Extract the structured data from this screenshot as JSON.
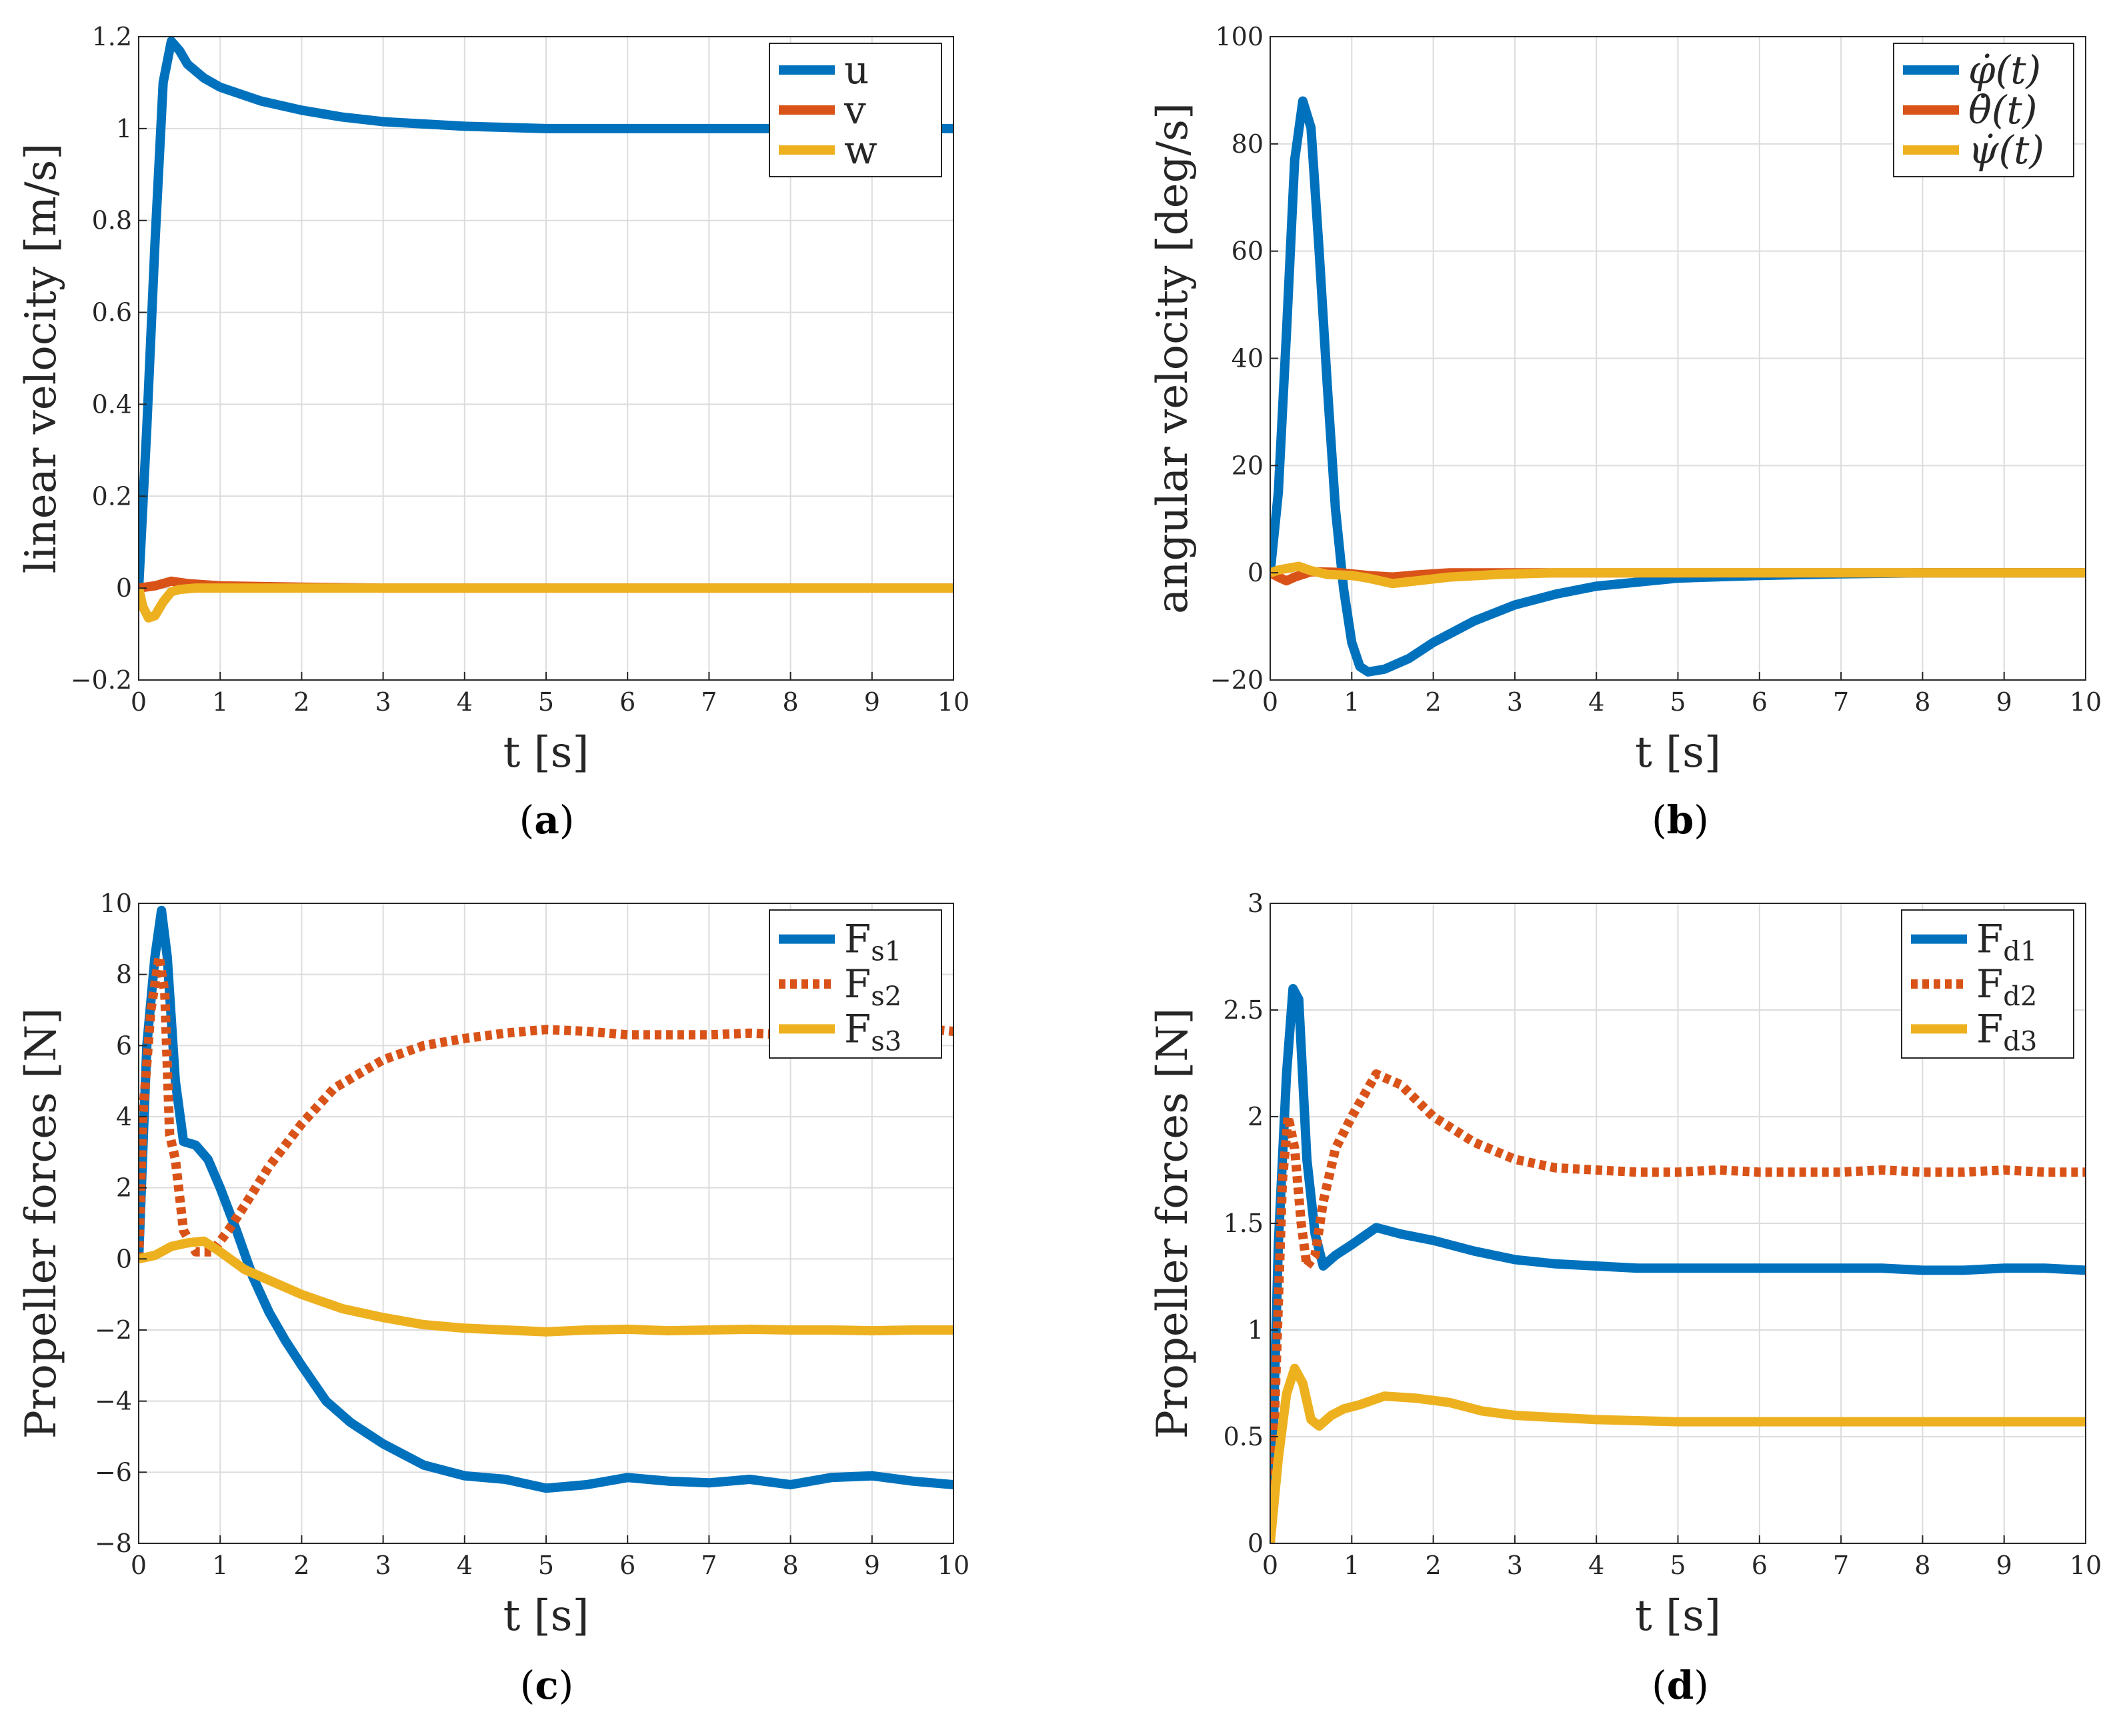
{
  "chart_data": [
    {
      "type": "line",
      "panel": "a",
      "caption": "(a)",
      "xlabel": "t [s]",
      "ylabel": "linear velocity [m/s]",
      "xlim": [
        0,
        10
      ],
      "ylim": [
        -0.2,
        1.2
      ],
      "xticks": [
        0,
        1,
        2,
        3,
        4,
        5,
        6,
        7,
        8,
        9,
        10
      ],
      "yticks": [
        -0.2,
        0,
        0.2,
        0.4,
        0.6,
        0.8,
        1,
        1.2
      ],
      "xtick_labels": [
        "0",
        "1",
        "2",
        "3",
        "4",
        "5",
        "6",
        "7",
        "8",
        "9",
        "10"
      ],
      "ytick_labels": [
        "−0.2",
        "0",
        "0.2",
        "0.4",
        "0.6",
        "0.8",
        "1",
        "1.2"
      ],
      "grid": true,
      "legend_position": "top-right",
      "series": [
        {
          "name": "u",
          "label": "u",
          "color": "#0072BD",
          "style": "solid",
          "x": [
            0,
            0.1,
            0.2,
            0.3,
            0.4,
            0.5,
            0.6,
            0.8,
            1.0,
            1.5,
            2.0,
            2.5,
            3.0,
            4.0,
            5.0,
            6.0,
            7.0,
            8.0,
            9.0,
            10.0
          ],
          "y": [
            0,
            0.35,
            0.75,
            1.1,
            1.19,
            1.17,
            1.14,
            1.11,
            1.09,
            1.06,
            1.04,
            1.025,
            1.015,
            1.005,
            1.0,
            1.0,
            1.0,
            1.0,
            1.0,
            1.0
          ]
        },
        {
          "name": "v",
          "label": "v",
          "color": "#D95319",
          "style": "solid",
          "x": [
            0,
            0.2,
            0.4,
            0.6,
            1.0,
            2.0,
            3.0,
            10.0
          ],
          "y": [
            0,
            0.005,
            0.015,
            0.01,
            0.005,
            0.002,
            0.0,
            0.0
          ]
        },
        {
          "name": "w",
          "label": "w",
          "color": "#EDB120",
          "style": "solid",
          "x": [
            0,
            0.05,
            0.12,
            0.2,
            0.3,
            0.4,
            0.5,
            0.7,
            1.0,
            2.0,
            10.0
          ],
          "y": [
            0,
            -0.04,
            -0.065,
            -0.06,
            -0.03,
            -0.008,
            -0.003,
            0.0,
            0.0,
            0.0,
            0.0
          ]
        }
      ]
    },
    {
      "type": "line",
      "panel": "b",
      "caption": "(b)",
      "xlabel": "t [s]",
      "ylabel": "angular velocity [deg/s]",
      "xlim": [
        0,
        10
      ],
      "ylim": [
        -20,
        100
      ],
      "xticks": [
        0,
        1,
        2,
        3,
        4,
        5,
        6,
        7,
        8,
        9,
        10
      ],
      "yticks": [
        -20,
        0,
        20,
        40,
        60,
        80,
        100
      ],
      "xtick_labels": [
        "0",
        "1",
        "2",
        "3",
        "4",
        "5",
        "6",
        "7",
        "8",
        "9",
        "10"
      ],
      "ytick_labels": [
        "−20",
        "0",
        "20",
        "40",
        "60",
        "80",
        "100"
      ],
      "grid": true,
      "legend_position": "top-right",
      "series": [
        {
          "name": "phi_dot",
          "label": "φ̇(t)",
          "color": "#0072BD",
          "style": "solid",
          "x": [
            0,
            0.1,
            0.2,
            0.3,
            0.4,
            0.5,
            0.6,
            0.7,
            0.8,
            0.9,
            1.0,
            1.1,
            1.2,
            1.4,
            1.7,
            2.0,
            2.5,
            3.0,
            3.5,
            4.0,
            5.0,
            6.0,
            7.0,
            8.0,
            9.0,
            10.0
          ],
          "y": [
            0,
            15,
            45,
            77,
            88,
            83,
            60,
            35,
            12,
            -3,
            -13,
            -17.5,
            -18.5,
            -18,
            -16,
            -13,
            -9,
            -6,
            -4,
            -2.5,
            -1,
            -0.5,
            -0.2,
            0,
            0,
            0
          ]
        },
        {
          "name": "theta_dot",
          "label": "θ̇(t)",
          "color": "#D95319",
          "style": "solid",
          "x": [
            0,
            0.1,
            0.2,
            0.3,
            0.5,
            0.8,
            1.2,
            1.5,
            1.8,
            2.2,
            3.0,
            10.0
          ],
          "y": [
            0,
            -0.8,
            -1.5,
            -0.8,
            0.2,
            0.1,
            -0.5,
            -0.8,
            -0.4,
            0,
            0,
            0
          ]
        },
        {
          "name": "psi_dot",
          "label": "ψ̇(t)",
          "color": "#EDB120",
          "style": "solid",
          "x": [
            0,
            0.1,
            0.2,
            0.35,
            0.5,
            0.7,
            1.0,
            1.2,
            1.5,
            1.8,
            2.2,
            2.8,
            3.5,
            10.0
          ],
          "y": [
            0,
            0.5,
            0.8,
            1.2,
            0.4,
            -0.3,
            -0.5,
            -1.0,
            -2.0,
            -1.5,
            -0.8,
            -0.3,
            0,
            0
          ]
        }
      ]
    },
    {
      "type": "line",
      "panel": "c",
      "caption": "(c)",
      "xlabel": "t [s]",
      "ylabel": "Propeller forces [N]",
      "xlim": [
        0,
        10
      ],
      "ylim": [
        -8,
        10
      ],
      "xticks": [
        0,
        1,
        2,
        3,
        4,
        5,
        6,
        7,
        8,
        9,
        10
      ],
      "yticks": [
        -8,
        -6,
        -4,
        -2,
        0,
        2,
        4,
        6,
        8,
        10
      ],
      "xtick_labels": [
        "0",
        "1",
        "2",
        "3",
        "4",
        "5",
        "6",
        "7",
        "8",
        "9",
        "10"
      ],
      "ytick_labels": [
        "−8",
        "−6",
        "−4",
        "−2",
        "0",
        "2",
        "4",
        "6",
        "8",
        "10"
      ],
      "grid": true,
      "legend_position": "top-right",
      "series": [
        {
          "name": "Fs1",
          "label": "F",
          "subscript": "s1",
          "color": "#0072BD",
          "style": "solid",
          "x": [
            0,
            0.1,
            0.2,
            0.28,
            0.35,
            0.45,
            0.55,
            0.7,
            0.85,
            1.0,
            1.2,
            1.4,
            1.6,
            1.8,
            2.0,
            2.3,
            2.6,
            3.0,
            3.5,
            4.0,
            4.5,
            5.0,
            5.5,
            6.0,
            6.5,
            7.0,
            7.5,
            8.0,
            8.5,
            9.0,
            9.5,
            10.0
          ],
          "y": [
            0,
            6,
            8.5,
            9.8,
            8.5,
            5,
            3.3,
            3.2,
            2.8,
            2.0,
            0.8,
            -0.5,
            -1.5,
            -2.3,
            -3.0,
            -4.0,
            -4.6,
            -5.2,
            -5.8,
            -6.1,
            -6.2,
            -6.45,
            -6.35,
            -6.15,
            -6.25,
            -6.3,
            -6.2,
            -6.35,
            -6.15,
            -6.1,
            -6.25,
            -6.35
          ]
        },
        {
          "name": "Fs2",
          "label": "F",
          "subscript": "s2",
          "color": "#D95319",
          "style": "dotted",
          "x": [
            0,
            0.05,
            0.15,
            0.25,
            0.32,
            0.38,
            0.45,
            0.55,
            0.7,
            0.9,
            1.1,
            1.3,
            1.6,
            2.0,
            2.4,
            3.0,
            3.5,
            4.0,
            4.5,
            5.0,
            5.5,
            6.0,
            6.5,
            7.0,
            7.5,
            8.0,
            8.5,
            9.0,
            9.5,
            10.0
          ],
          "y": [
            0,
            4,
            7,
            8.5,
            7.5,
            3.5,
            2.8,
            0.8,
            0.2,
            0.2,
            0.8,
            1.5,
            2.6,
            3.8,
            4.8,
            5.6,
            6.0,
            6.2,
            6.35,
            6.45,
            6.4,
            6.3,
            6.3,
            6.3,
            6.35,
            6.3,
            6.4,
            6.45,
            6.5,
            6.4
          ]
        },
        {
          "name": "Fs3",
          "label": "F",
          "subscript": "s3",
          "color": "#EDB120",
          "style": "solid",
          "x": [
            0,
            0.2,
            0.4,
            0.6,
            0.8,
            1.0,
            1.3,
            1.6,
            2.0,
            2.5,
            3.0,
            3.5,
            4.0,
            4.5,
            5.0,
            5.5,
            6.0,
            6.5,
            7.0,
            7.5,
            8.0,
            8.5,
            9.0,
            9.5,
            10.0
          ],
          "y": [
            0,
            0.1,
            0.35,
            0.45,
            0.5,
            0.2,
            -0.3,
            -0.6,
            -1.0,
            -1.4,
            -1.65,
            -1.85,
            -1.95,
            -2.0,
            -2.05,
            -2.0,
            -1.98,
            -2.02,
            -2.0,
            -1.98,
            -2.0,
            -2.0,
            -2.02,
            -2.0,
            -2.0
          ]
        }
      ]
    },
    {
      "type": "line",
      "panel": "d",
      "caption": "(d)",
      "xlabel": "t [s]",
      "ylabel": "Propeller forces [N]",
      "xlim": [
        0,
        10
      ],
      "ylim": [
        0,
        3
      ],
      "xticks": [
        0,
        1,
        2,
        3,
        4,
        5,
        6,
        7,
        8,
        9,
        10
      ],
      "yticks": [
        0,
        0.5,
        1,
        1.5,
        2,
        2.5,
        3
      ],
      "xtick_labels": [
        "0",
        "1",
        "2",
        "3",
        "4",
        "5",
        "6",
        "7",
        "8",
        "9",
        "10"
      ],
      "ytick_labels": [
        "0",
        "0.5",
        "1",
        "1.5",
        "2",
        "2.5",
        "3"
      ],
      "grid": true,
      "legend_position": "top-right",
      "series": [
        {
          "name": "Fd1",
          "label": "F",
          "subscript": "d1",
          "color": "#0072BD",
          "style": "solid",
          "x": [
            0,
            0.1,
            0.2,
            0.28,
            0.35,
            0.45,
            0.55,
            0.65,
            0.8,
            1.0,
            1.3,
            1.6,
            2.0,
            2.5,
            3.0,
            3.5,
            4.0,
            4.5,
            5.0,
            5.5,
            6.0,
            6.5,
            7.0,
            7.5,
            8.0,
            8.5,
            9.0,
            9.5,
            10.0
          ],
          "y": [
            0,
            1.4,
            2.2,
            2.6,
            2.55,
            1.8,
            1.45,
            1.3,
            1.35,
            1.4,
            1.48,
            1.45,
            1.42,
            1.37,
            1.33,
            1.31,
            1.3,
            1.29,
            1.29,
            1.29,
            1.29,
            1.29,
            1.29,
            1.29,
            1.28,
            1.28,
            1.29,
            1.29,
            1.28
          ]
        },
        {
          "name": "Fd2",
          "label": "F",
          "subscript": "d2",
          "color": "#D95319",
          "style": "dotted",
          "x": [
            0,
            0.08,
            0.15,
            0.22,
            0.3,
            0.38,
            0.45,
            0.55,
            0.65,
            0.8,
            1.0,
            1.3,
            1.6,
            2.0,
            2.5,
            3.0,
            3.5,
            4.0,
            4.5,
            5.0,
            5.5,
            6.0,
            6.5,
            7.0,
            7.5,
            8.0,
            8.5,
            9.0,
            9.5,
            10.0
          ],
          "y": [
            0,
            0.9,
            1.7,
            2.0,
            1.85,
            1.5,
            1.3,
            1.35,
            1.6,
            1.85,
            2.0,
            2.2,
            2.15,
            2.0,
            1.88,
            1.8,
            1.76,
            1.75,
            1.74,
            1.74,
            1.75,
            1.74,
            1.74,
            1.74,
            1.75,
            1.74,
            1.74,
            1.75,
            1.74,
            1.74
          ]
        },
        {
          "name": "Fd3",
          "label": "F",
          "subscript": "d3",
          "color": "#EDB120",
          "style": "solid",
          "x": [
            0,
            0.1,
            0.2,
            0.3,
            0.4,
            0.5,
            0.6,
            0.75,
            0.9,
            1.1,
            1.4,
            1.8,
            2.2,
            2.6,
            3.0,
            3.5,
            4.0,
            5.0,
            6.0,
            7.0,
            8.0,
            9.0,
            10.0
          ],
          "y": [
            0,
            0.4,
            0.7,
            0.82,
            0.75,
            0.58,
            0.55,
            0.6,
            0.63,
            0.65,
            0.69,
            0.68,
            0.66,
            0.62,
            0.6,
            0.59,
            0.58,
            0.57,
            0.57,
            0.57,
            0.57,
            0.57,
            0.57
          ]
        }
      ]
    }
  ]
}
